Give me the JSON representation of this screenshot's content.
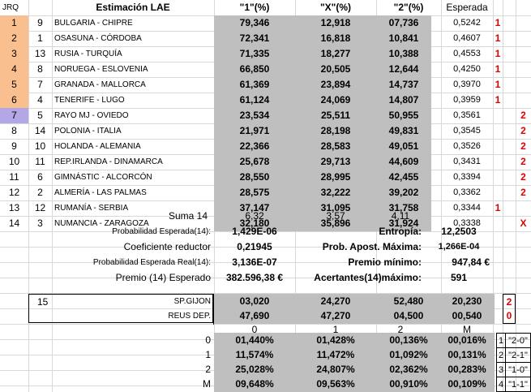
{
  "header": {
    "jrq": "JRQ",
    "title": "Estimación LAE",
    "col1": "\"1\"(%)",
    "colX": "\"X\"(%)",
    "col2": "\"2\"(%)",
    "esperada": "Esperada"
  },
  "matches": [
    {
      "jrq": "1",
      "rank": "9",
      "match": "BULGARIA - CHIPRE",
      "p1": "79,346",
      "px": "12,918",
      "p2": "07,736",
      "esp": "0,5242",
      "pick1": "1",
      "pick2": "",
      "color": "orange"
    },
    {
      "jrq": "2",
      "rank": "1",
      "match": "OSASUNA - CÓRDOBA",
      "p1": "72,341",
      "px": "16,818",
      "p2": "10,841",
      "esp": "0,4607",
      "pick1": "1",
      "pick2": "",
      "color": "orange"
    },
    {
      "jrq": "3",
      "rank": "13",
      "match": "RUSIA - TURQUÍA",
      "p1": "71,335",
      "px": "18,277",
      "p2": "10,388",
      "esp": "0,4553",
      "pick1": "1",
      "pick2": "",
      "color": "orange"
    },
    {
      "jrq": "4",
      "rank": "8",
      "match": "NORUEGA - ESLOVENIA",
      "p1": "66,850",
      "px": "20,505",
      "p2": "12,644",
      "esp": "0,4250",
      "pick1": "1",
      "pick2": "",
      "color": "orange"
    },
    {
      "jrq": "5",
      "rank": "7",
      "match": "GRANADA - MALLORCA",
      "p1": "61,369",
      "px": "23,894",
      "p2": "14,737",
      "esp": "0,3970",
      "pick1": "1",
      "pick2": "",
      "color": "orange"
    },
    {
      "jrq": "6",
      "rank": "4",
      "match": "TENERIFE - LUGO",
      "p1": "61,124",
      "px": "24,069",
      "p2": "14,807",
      "esp": "0,3959",
      "pick1": "1",
      "pick2": "",
      "color": "orange"
    },
    {
      "jrq": "7",
      "rank": "5",
      "match": "RAYO MJ - OVIEDO",
      "p1": "23,534",
      "px": "25,511",
      "p2": "50,955",
      "esp": "0,3561",
      "pick1": "",
      "pick2": "2",
      "color": "lav"
    },
    {
      "jrq": "8",
      "rank": "14",
      "match": "POLONIA - ITALIA",
      "p1": "21,971",
      "px": "28,198",
      "p2": "49,831",
      "esp": "0,3545",
      "pick1": "",
      "pick2": "2",
      "color": ""
    },
    {
      "jrq": "9",
      "rank": "10",
      "match": "HOLANDA - ALEMANIA",
      "p1": "22,366",
      "px": "28,583",
      "p2": "49,051",
      "esp": "0,3526",
      "pick1": "",
      "pick2": "2",
      "color": ""
    },
    {
      "jrq": "10",
      "rank": "11",
      "match": "REP.IRLANDA - DINAMARCA",
      "p1": "25,678",
      "px": "29,713",
      "p2": "44,609",
      "esp": "0,3431",
      "pick1": "",
      "pick2": "2",
      "color": ""
    },
    {
      "jrq": "11",
      "rank": "6",
      "match": "GIMNÁSTIC - ALCORCÓN",
      "p1": "28,550",
      "px": "28,995",
      "p2": "42,455",
      "esp": "0,3394",
      "pick1": "",
      "pick2": "2",
      "color": ""
    },
    {
      "jrq": "12",
      "rank": "2",
      "match": "ALMERÍA - LAS PALMAS",
      "p1": "28,575",
      "px": "32,222",
      "p2": "39,202",
      "esp": "0,3362",
      "pick1": "",
      "pick2": "2",
      "color": ""
    },
    {
      "jrq": "13",
      "rank": "12",
      "match": "RUMANÍA - SERBIA",
      "p1": "37,147",
      "px": "31,095",
      "p2": "31,758",
      "esp": "0,3344",
      "pick1": "1",
      "pick2": "",
      "color": ""
    },
    {
      "jrq": "14",
      "rank": "3",
      "match": "NUMANCIA - ZARAGOZA",
      "p1": "32,180",
      "px": "35,896",
      "p2": "31,924",
      "esp": "0,3338",
      "pick1": "",
      "pick2": "X",
      "color": ""
    }
  ],
  "summary": {
    "suma_label": "Suma 14",
    "suma1": "6,32",
    "sumaX": "3,57",
    "suma2": "4,11",
    "prob_esp_label": "Probabilidad Esperada(14):",
    "prob_esp": "1,429E-06",
    "entropia_label": "Entropía:",
    "entropia": "12,2503",
    "coef_label": "Coeficiente reductor",
    "coef": "0,21945",
    "prob_apost_label": "Prob. Apost. Máxima:",
    "prob_apost": "1,266E-04",
    "prob_real_label": "Probabilidad Esperada Real(14):",
    "prob_real": "3,136E-07",
    "premio_min_label": "Premio mínimo:",
    "premio_min": "947,84 €",
    "premio_esp_label": "Premio (14) Esperado",
    "premio_esp": "382.596,38 €",
    "acert_label": "Acertantes(14)máximo:",
    "acert": "591"
  },
  "pleno": {
    "num": "15",
    "home": {
      "team": "SP.GIJON",
      "c0": "03,020",
      "c1": "24,270",
      "c2": "52,480",
      "cm": "20,230",
      "pick": "2"
    },
    "away": {
      "team": "REUS DEP.",
      "c0": "47,690",
      "c1": "47,270",
      "c2": "04,500",
      "cm": "00,540",
      "pick": "0"
    },
    "cols": [
      "0",
      "1",
      "2",
      "M"
    ],
    "matrix": [
      {
        "label": "0",
        "v": [
          "01,440%",
          "01,428%",
          "00,136%",
          "00,016%"
        ],
        "code": "1",
        "res": "\"2-0\""
      },
      {
        "label": "1",
        "v": [
          "11,574%",
          "11,472%",
          "01,092%",
          "00,131%"
        ],
        "code": "2",
        "res": "\"2-1\""
      },
      {
        "label": "2",
        "v": [
          "25,028%",
          "24,807%",
          "02,362%",
          "00,283%"
        ],
        "code": "3",
        "res": "\"1-0\""
      },
      {
        "label": "M",
        "v": [
          "09,648%",
          "09,563%",
          "00,910%",
          "00,109%"
        ],
        "code": "4",
        "res": "\"1-1\""
      }
    ]
  }
}
